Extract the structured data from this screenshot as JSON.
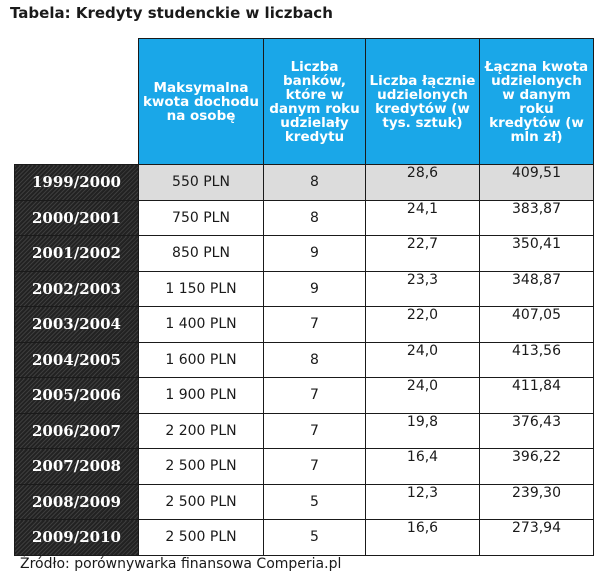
{
  "title": "Tabela: Kredyty studenckie w liczbach",
  "headers": {
    "income": "Maksymalna kwota dochodu na osobę",
    "banks": "Liczba banków, które w danym roku udzielały kredytu",
    "count": "Liczba łącznie udzielonych kredytów (w tys. sztuk)",
    "amount": "Łączna kwota udzielonych w danym roku kredytów (w mln zł)"
  },
  "rows": [
    {
      "year": "1999/2000",
      "income": "550 PLN",
      "banks": "8",
      "count": "28,6",
      "amount": "409,51"
    },
    {
      "year": "2000/2001",
      "income": "750 PLN",
      "banks": "8",
      "count": "24,1",
      "amount": "383,87"
    },
    {
      "year": "2001/2002",
      "income": "850 PLN",
      "banks": "9",
      "count": "22,7",
      "amount": "350,41"
    },
    {
      "year": "2002/2003",
      "income": "1 150 PLN",
      "banks": "9",
      "count": "23,3",
      "amount": "348,87"
    },
    {
      "year": "2003/2004",
      "income": "1 400 PLN",
      "banks": "7",
      "count": "22,0",
      "amount": "407,05"
    },
    {
      "year": "2004/2005",
      "income": "1 600 PLN",
      "banks": "8",
      "count": "24,0",
      "amount": "413,56"
    },
    {
      "year": "2005/2006",
      "income": "1 900 PLN",
      "banks": "7",
      "count": "24,0",
      "amount": "411,84"
    },
    {
      "year": "2006/2007",
      "income": "2 200 PLN",
      "banks": "7",
      "count": "19,8",
      "amount": "376,43"
    },
    {
      "year": "2007/2008",
      "income": "2 500 PLN",
      "banks": "7",
      "count": "16,4",
      "amount": "396,22"
    },
    {
      "year": "2008/2009",
      "income": "2 500 PLN",
      "banks": "5",
      "count": "12,3",
      "amount": "239,30"
    },
    {
      "year": "2009/2010",
      "income": "2 500 PLN",
      "banks": "5",
      "count": "16,6",
      "amount": "273,94"
    }
  ],
  "source": "Źródło: porównywarka finansowa Comperia.pl"
}
